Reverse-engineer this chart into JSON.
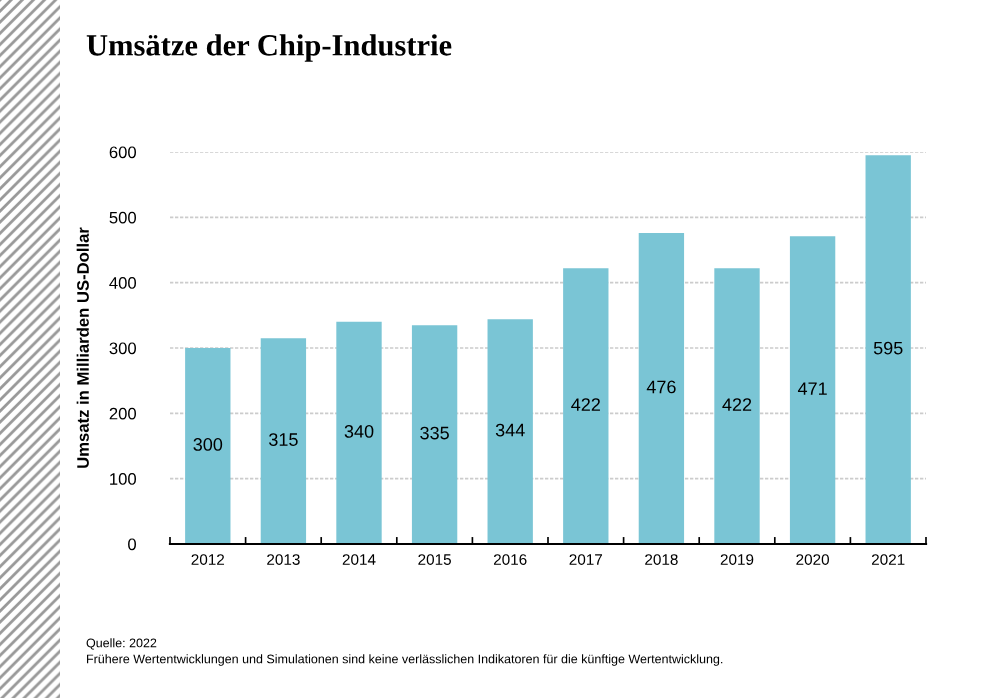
{
  "chart_data": {
    "type": "bar",
    "title": "Umsätze der Chip-Industrie",
    "ylabel": "Umsatz in Milliarden US-Dollar",
    "categories": [
      "2012",
      "2013",
      "2014",
      "2015",
      "2016",
      "2017",
      "2018",
      "2019",
      "2020",
      "2021"
    ],
    "values": [
      300,
      315,
      340,
      335,
      344,
      422,
      476,
      422,
      471,
      595
    ],
    "color": "#7ac5d5",
    "data_labels": true,
    "ylim": [
      0,
      600
    ],
    "yticks": [
      0,
      100,
      200,
      300,
      400,
      500,
      600
    ],
    "grid": "y",
    "annotations": [
      "Quelle: 2022",
      "Frühere Wertentwicklungen und Simulationen sind keine verlässlichen Indikatoren für die künftige Wertentwicklung."
    ]
  }
}
